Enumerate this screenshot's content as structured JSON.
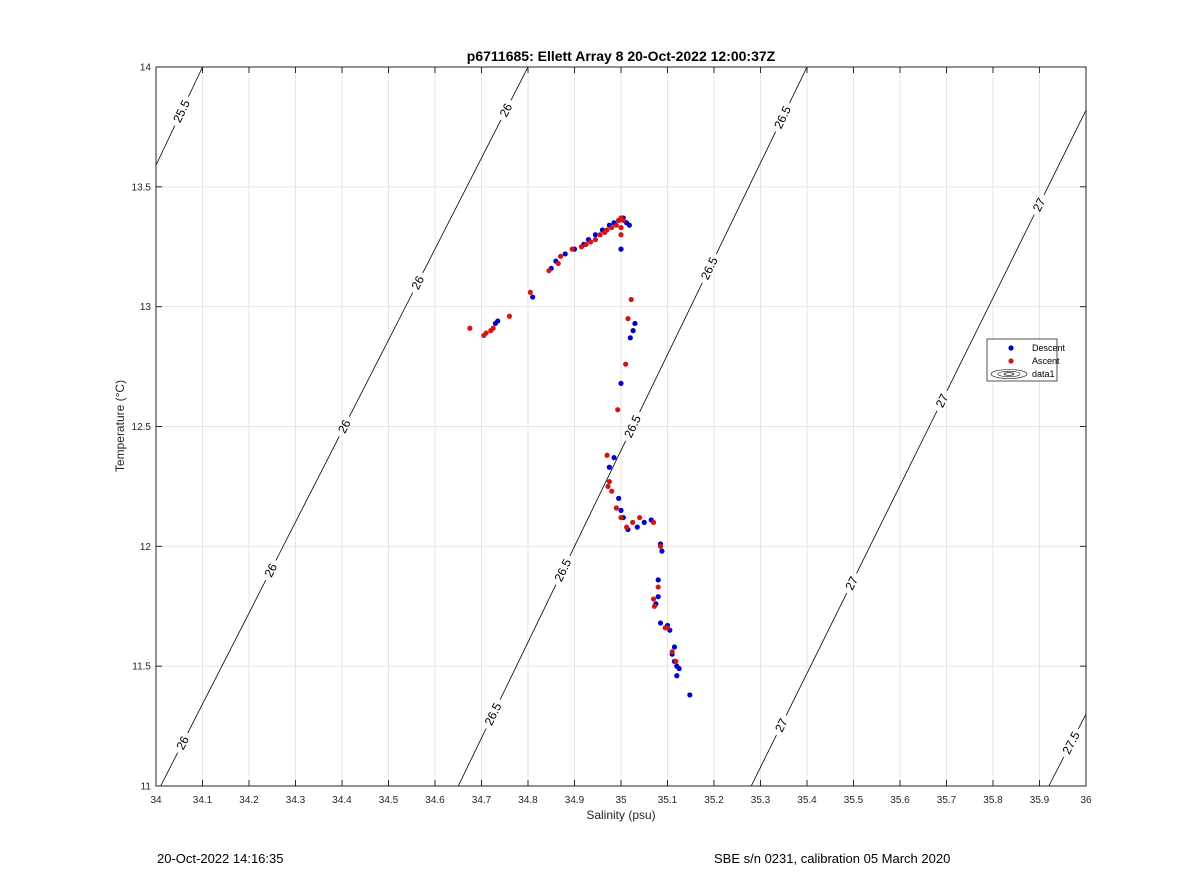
{
  "chart_data": {
    "type": "scatter",
    "title": "p6711685: Ellett Array 8 20-Oct-2022 12:00:37Z",
    "xlabel": "Salinity (psu)",
    "ylabel": "Temperature (°C)",
    "xlim": [
      34,
      36
    ],
    "ylim": [
      11,
      14
    ],
    "xticks": [
      "34",
      "34.1",
      "34.2",
      "34.3",
      "34.4",
      "34.5",
      "34.6",
      "34.7",
      "34.8",
      "34.9",
      "35",
      "35.1",
      "35.2",
      "35.3",
      "35.4",
      "35.5",
      "35.6",
      "35.7",
      "35.8",
      "35.9",
      "36"
    ],
    "yticks": [
      "11",
      "11.5",
      "12",
      "12.5",
      "13",
      "13.5",
      "14"
    ],
    "grid": true,
    "legend_placement": "right",
    "legend": [
      {
        "name": "Descent",
        "color": "#0000c8",
        "marker": "dot"
      },
      {
        "name": "Ascent",
        "color": "#d41515",
        "marker": "dot"
      },
      {
        "name": "data1",
        "color": "#000000",
        "marker": "contour"
      }
    ],
    "series": [
      {
        "name": "Descent",
        "color": "#0000c8",
        "points": [
          [
            34.85,
            13.16
          ],
          [
            34.86,
            13.19
          ],
          [
            34.88,
            13.22
          ],
          [
            34.9,
            13.24
          ],
          [
            34.92,
            13.26
          ],
          [
            34.93,
            13.28
          ],
          [
            34.945,
            13.3
          ],
          [
            34.96,
            13.32
          ],
          [
            34.975,
            13.34
          ],
          [
            34.985,
            13.35
          ],
          [
            34.995,
            13.36
          ],
          [
            35.005,
            13.37
          ],
          [
            35.012,
            13.35
          ],
          [
            35.018,
            13.34
          ],
          [
            35.0,
            13.24
          ],
          [
            35.03,
            12.93
          ],
          [
            35.026,
            12.9
          ],
          [
            35.02,
            12.87
          ],
          [
            35.0,
            12.68
          ],
          [
            34.81,
            13.04
          ],
          [
            34.735,
            12.94
          ],
          [
            34.73,
            12.93
          ],
          [
            34.985,
            12.37
          ],
          [
            34.975,
            12.33
          ],
          [
            34.995,
            12.2
          ],
          [
            35.0,
            12.15
          ],
          [
            35.005,
            12.12
          ],
          [
            35.015,
            12.07
          ],
          [
            35.035,
            12.08
          ],
          [
            35.05,
            12.1
          ],
          [
            35.065,
            12.11
          ],
          [
            35.085,
            12.01
          ],
          [
            35.088,
            11.98
          ],
          [
            35.08,
            11.86
          ],
          [
            35.08,
            11.79
          ],
          [
            35.075,
            11.76
          ],
          [
            35.085,
            11.68
          ],
          [
            35.1,
            11.67
          ],
          [
            35.105,
            11.65
          ],
          [
            35.115,
            11.58
          ],
          [
            35.11,
            11.55
          ],
          [
            35.115,
            11.52
          ],
          [
            35.12,
            11.5
          ],
          [
            35.125,
            11.49
          ],
          [
            35.12,
            11.46
          ],
          [
            35.148,
            11.38
          ]
        ]
      },
      {
        "name": "Ascent",
        "color": "#d41515",
        "points": [
          [
            34.845,
            13.15
          ],
          [
            34.865,
            13.18
          ],
          [
            34.87,
            13.21
          ],
          [
            34.895,
            13.24
          ],
          [
            34.915,
            13.25
          ],
          [
            34.925,
            13.26
          ],
          [
            34.935,
            13.27
          ],
          [
            34.945,
            13.28
          ],
          [
            34.955,
            13.3
          ],
          [
            34.965,
            13.31
          ],
          [
            34.97,
            13.32
          ],
          [
            34.98,
            13.33
          ],
          [
            34.99,
            13.34
          ],
          [
            34.995,
            13.36
          ],
          [
            35.0,
            13.37
          ],
          [
            35.005,
            13.36
          ],
          [
            35.0,
            13.33
          ],
          [
            35.0,
            13.3
          ],
          [
            35.022,
            13.03
          ],
          [
            35.015,
            12.95
          ],
          [
            35.01,
            12.76
          ],
          [
            34.993,
            12.57
          ],
          [
            34.805,
            13.06
          ],
          [
            34.76,
            12.96
          ],
          [
            34.725,
            12.91
          ],
          [
            34.72,
            12.9
          ],
          [
            34.71,
            12.89
          ],
          [
            34.705,
            12.88
          ],
          [
            34.675,
            12.91
          ],
          [
            34.97,
            12.38
          ],
          [
            34.975,
            12.27
          ],
          [
            34.972,
            12.25
          ],
          [
            34.98,
            12.23
          ],
          [
            34.99,
            12.16
          ],
          [
            35.0,
            12.12
          ],
          [
            35.012,
            12.08
          ],
          [
            35.025,
            12.1
          ],
          [
            35.04,
            12.12
          ],
          [
            35.07,
            12.1
          ],
          [
            35.085,
            12.0
          ],
          [
            35.08,
            11.83
          ],
          [
            35.07,
            11.78
          ],
          [
            35.072,
            11.75
          ],
          [
            35.095,
            11.66
          ],
          [
            35.1,
            11.66
          ],
          [
            35.11,
            11.56
          ],
          [
            35.118,
            11.52
          ]
        ]
      }
    ],
    "contours": [
      {
        "label": "25.5",
        "points": [
          [
            34.0,
            13.59
          ],
          [
            34.1,
            14.0
          ]
        ],
        "labels_at": [
          0.55
        ]
      },
      {
        "label": "26",
        "points": [
          [
            34.01,
            11.0
          ],
          [
            34.8,
            14.0
          ]
        ],
        "labels_at": [
          0.06,
          0.3,
          0.5,
          0.7,
          0.94
        ]
      },
      {
        "label": "26.5",
        "points": [
          [
            34.65,
            11.0
          ],
          [
            35.4,
            14.0
          ]
        ],
        "labels_at": [
          0.1,
          0.3,
          0.5,
          0.72,
          0.93
        ]
      },
      {
        "label": "27",
        "points": [
          [
            35.28,
            11.0
          ],
          [
            36.0,
            13.82
          ]
        ],
        "labels_at": [
          0.09,
          0.3,
          0.57,
          0.86
        ]
      },
      {
        "label": "27.5",
        "points": [
          [
            35.92,
            11.0
          ],
          [
            36.0,
            11.3
          ]
        ],
        "labels_at": [
          0.6
        ]
      }
    ]
  },
  "footer": {
    "timestamp": "20-Oct-2022 14:16:35",
    "instrument": "SBE s/n 0231, calibration 05 March 2020"
  }
}
